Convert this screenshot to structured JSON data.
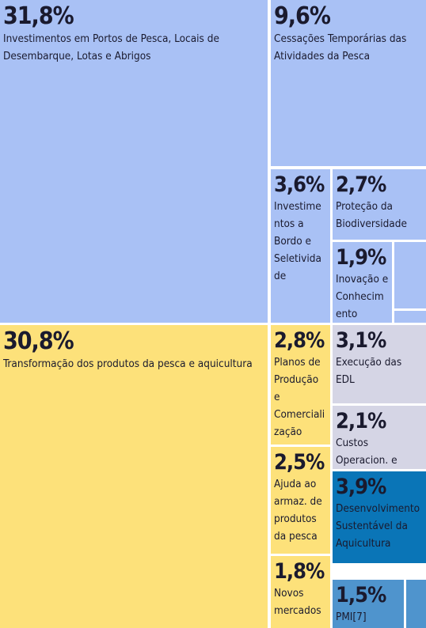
{
  "chart_data": {
    "type": "treemap",
    "categories": [
      "Investimentos em Portos de Pesca, Locais de Desembarque, Lotas e Abrigos",
      "Cessações Temporárias das Atividades da Pesca",
      "Investimentos a Bordo e Seletividade",
      "Proteção da Biodiversidade",
      "Inovação e Conhecimento",
      "Transformação dos produtos da pesca e aquicultura",
      "Planos de Produção e Comercialização",
      "Execução das EDL",
      "Custos Operacion. e Animação",
      "Ajuda ao armaz. de produtos da pesca",
      "Desenvolvimento Sustentável da Aquicultura",
      "Novos mercados",
      "PMI[7]"
    ],
    "values": [
      31.8,
      9.6,
      3.6,
      2.7,
      1.9,
      30.8,
      2.8,
      3.1,
      2.1,
      2.5,
      3.9,
      1.8,
      1.5
    ],
    "value_labels": [
      "31,8%",
      "9,6%",
      "3,6%",
      "2,7%",
      "1,9%",
      "30,8%",
      "2,8%",
      "3,1%",
      "2,1%",
      "2,5%",
      "3,9%",
      "1,8%",
      "1,5%"
    ],
    "colors": [
      "#a9c1f5",
      "#a9c1f5",
      "#a9c1f5",
      "#a9c1f5",
      "#a9c1f5",
      "#fde17a",
      "#fde17a",
      "#d5d5e5",
      "#d5d5e5",
      "#fde17a",
      "#0a75b7",
      "#fde17a",
      "#4f94cd"
    ]
  }
}
